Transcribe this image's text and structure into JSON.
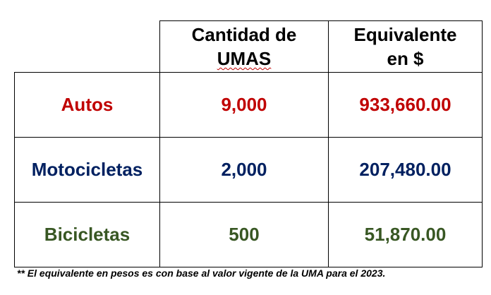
{
  "table": {
    "header": [
      [
        "Cantidad de",
        "UMAS"
      ],
      [
        "Equivalente",
        "en $"
      ]
    ],
    "rows": [
      {
        "label": "Autos",
        "color": "#c00000",
        "cells": [
          "9,000",
          "933,660.00"
        ]
      },
      {
        "label": "Motocicletas",
        "color": "#002060",
        "cells": [
          "2,000",
          "207,480.00"
        ]
      },
      {
        "label": "Bicicletas",
        "color": "#385723",
        "cells": [
          "500",
          "51,870.00"
        ]
      }
    ]
  },
  "footnote": "** El equivalente en pesos es con base al valor vigente de la UMA para el 2023."
}
